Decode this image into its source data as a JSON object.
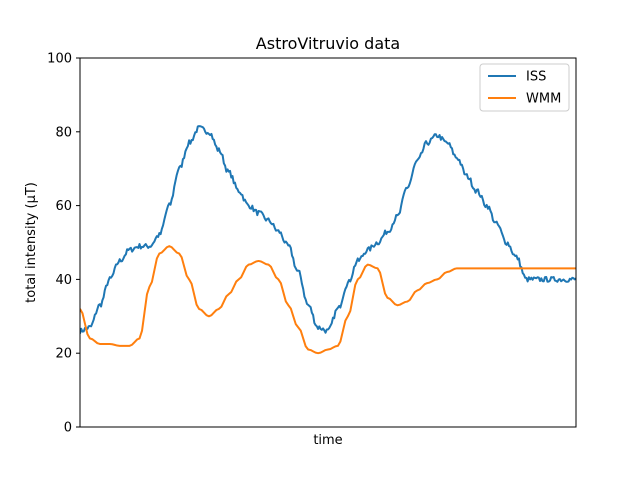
{
  "chart_data": {
    "type": "line",
    "title": "AstroVitruvio data",
    "xlabel": "time",
    "ylabel": "total intensity (µT)",
    "ylim": [
      0,
      100
    ],
    "yticks": [
      0,
      20,
      40,
      60,
      80,
      100
    ],
    "xlim": [
      0,
      100
    ],
    "xticks_shown": false,
    "grid": false,
    "legend_position": "top-right",
    "x": [
      0,
      2,
      4,
      6,
      8,
      10,
      12,
      14,
      16,
      18,
      20,
      22,
      24,
      26,
      28,
      30,
      32,
      34,
      36,
      38,
      40,
      42,
      44,
      46,
      48,
      50,
      52,
      54,
      56,
      58,
      60,
      62,
      64,
      66,
      68,
      70,
      72,
      74,
      76,
      78,
      80,
      82,
      84,
      86,
      88,
      90,
      92,
      94,
      96,
      98,
      100
    ],
    "series": [
      {
        "name": "ISS",
        "color": "#1f77b4",
        "noisy": true,
        "values": [
          26,
          27,
          33,
          40,
          45,
          48,
          49,
          49,
          52,
          60,
          70,
          77,
          81,
          80,
          75,
          69,
          64,
          60,
          58,
          56,
          53,
          49,
          42,
          33,
          27,
          26,
          32,
          39,
          45,
          48,
          50,
          53,
          57,
          65,
          72,
          77,
          79,
          77,
          73,
          68,
          64,
          60,
          55,
          50,
          46,
          40,
          40,
          40,
          40,
          40,
          40
        ]
      },
      {
        "name": "WMM",
        "color": "#ff7f0e",
        "noisy": false,
        "values": [
          32,
          24,
          22.5,
          22.5,
          22,
          22,
          24,
          38,
          47,
          49,
          47,
          40,
          32,
          30,
          32,
          36,
          40,
          44,
          45,
          44,
          40,
          33,
          27,
          21,
          20,
          21,
          22,
          30,
          40,
          44,
          43,
          35,
          33,
          34,
          37,
          39,
          40,
          42,
          43,
          43,
          43,
          43,
          43,
          43,
          43,
          43,
          43,
          43,
          43,
          43,
          43
        ]
      }
    ]
  }
}
